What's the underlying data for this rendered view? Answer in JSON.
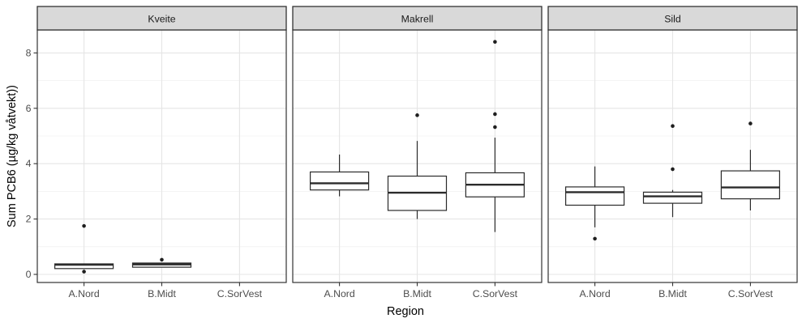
{
  "colors": {
    "background": "#FFFFFF",
    "strip_fill": "#D9D9D9",
    "strip_border": "#333333",
    "strip_text": "#1A1A1A",
    "panel_border": "#333333",
    "grid_major": "#E5E5E5",
    "grid_minor": "#F1F1F1",
    "box_stroke": "#2B2B2B",
    "box_fill": "#FFFFFF",
    "outlier_fill": "#1F1F1F",
    "tick_mark": "#333333",
    "tick_label": "#4D4D4D",
    "axis_title": "#000000"
  },
  "chart_data": {
    "type": "boxplot",
    "title": "",
    "xlabel": "Region",
    "ylabel": "Sum PCB6 (µg/kg våtvekt))",
    "categories": [
      "A.Nord",
      "B.Midt",
      "C.SorVest"
    ],
    "y_major_ticks": [
      0,
      2,
      4,
      6,
      8
    ],
    "y_minor_gridlines": [
      1,
      3,
      5,
      7
    ],
    "ylim": [
      -0.3,
      8.85
    ],
    "grid": "on",
    "legend": "none",
    "facets": [
      {
        "species": "Kveite",
        "boxes": [
          {
            "region": "A.Nord",
            "whisker_low": 0.21,
            "q1": 0.21,
            "median": 0.35,
            "q3": 0.38,
            "whisker_high": 0.38,
            "outliers": [
              0.1,
              1.75
            ]
          },
          {
            "region": "B.Midt",
            "whisker_low": 0.26,
            "q1": 0.26,
            "median": 0.36,
            "q3": 0.41,
            "whisker_high": 0.41,
            "outliers": [
              0.53
            ]
          },
          {
            "region": "C.SorVest",
            "no_data": true,
            "outliers": []
          }
        ]
      },
      {
        "species": "Makrell",
        "boxes": [
          {
            "region": "A.Nord",
            "whisker_low": 2.82,
            "q1": 3.05,
            "median": 3.29,
            "q3": 3.7,
            "whisker_high": 4.33,
            "outliers": []
          },
          {
            "region": "B.Midt",
            "whisker_low": 2.0,
            "q1": 2.31,
            "median": 2.95,
            "q3": 3.55,
            "whisker_high": 4.82,
            "outliers": [
              5.75
            ]
          },
          {
            "region": "C.SorVest",
            "whisker_low": 1.53,
            "q1": 2.8,
            "median": 3.24,
            "q3": 3.67,
            "whisker_high": 4.94,
            "outliers": [
              5.32,
              5.79,
              8.4
            ]
          }
        ]
      },
      {
        "species": "Sild",
        "boxes": [
          {
            "region": "A.Nord",
            "whisker_low": 1.7,
            "q1": 2.5,
            "median": 2.97,
            "q3": 3.16,
            "whisker_high": 3.9,
            "outliers": [
              1.29
            ]
          },
          {
            "region": "B.Midt",
            "whisker_low": 2.07,
            "q1": 2.57,
            "median": 2.82,
            "q3": 2.97,
            "whisker_high": 3.05,
            "outliers": [
              3.8,
              5.36
            ]
          },
          {
            "region": "C.SorVest",
            "whisker_low": 2.31,
            "q1": 2.73,
            "median": 3.14,
            "q3": 3.74,
            "whisker_high": 4.5,
            "outliers": [
              5.45
            ]
          }
        ]
      }
    ]
  }
}
